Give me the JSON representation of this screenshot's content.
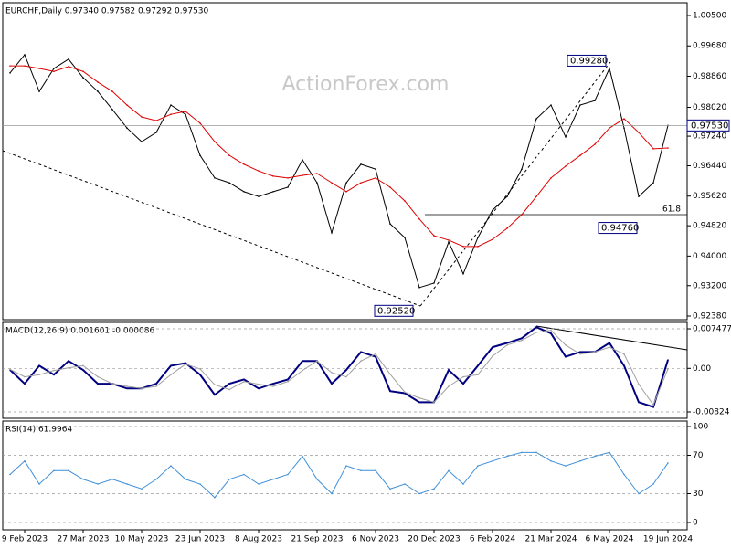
{
  "chart_data": [
    {
      "type": "line",
      "title": "EURCHF,Daily  0.97340 0.97582 0.97292 0.97530",
      "watermark": "ActionForex.com",
      "categories": [
        null,
        "9 Feb 2023",
        null,
        null,
        null,
        "27 Mar 2023",
        null,
        null,
        null,
        "10 May 2023",
        null,
        null,
        null,
        "23 Jun 2023",
        null,
        null,
        null,
        "8 Aug 2023",
        null,
        null,
        null,
        "21 Sep 2023",
        null,
        null,
        null,
        "6 Nov 2023",
        null,
        null,
        null,
        "20 Dec 2023",
        null,
        null,
        null,
        "6 Feb 2024",
        null,
        null,
        null,
        "21 Mar 2024",
        null,
        null,
        null,
        "6 May 2024",
        null,
        null,
        null,
        "19 Jun 2024"
      ],
      "series": [
        {
          "name": "EURCHF",
          "color": "#000000",
          "values": [
            0.9895,
            0.9944,
            0.9845,
            0.9907,
            0.9932,
            0.9882,
            0.9845,
            0.9796,
            0.9746,
            0.9709,
            0.9734,
            0.9808,
            0.9783,
            0.9672,
            0.9611,
            0.9598,
            0.9574,
            0.9561,
            0.9574,
            0.9586,
            0.966,
            0.9598,
            0.9463,
            0.9598,
            0.9648,
            0.9635,
            0.9487,
            0.945,
            0.9315,
            0.9327,
            0.9438,
            0.9352,
            0.945,
            0.9524,
            0.9561,
            0.9635,
            0.9771,
            0.9808,
            0.9722,
            0.9808,
            0.982,
            0.9907,
            0.9746,
            0.9561,
            0.9598,
            0.9753
          ]
        },
        {
          "name": "MA",
          "color": "#e00000",
          "values": [
            0.9914,
            0.9914,
            0.9907,
            0.9899,
            0.9912,
            0.9899,
            0.987,
            0.9845,
            0.9808,
            0.9776,
            0.9766,
            0.9783,
            0.9791,
            0.9759,
            0.9709,
            0.9672,
            0.9648,
            0.963,
            0.9616,
            0.9611,
            0.9618,
            0.9623,
            0.9598,
            0.9574,
            0.9598,
            0.9611,
            0.9586,
            0.9549,
            0.95,
            0.9455,
            0.9443,
            0.9426,
            0.9426,
            0.9445,
            0.9475,
            0.9512,
            0.9561,
            0.9611,
            0.9643,
            0.9672,
            0.9702,
            0.9746,
            0.9771,
            0.9734,
            0.969,
            0.9692
          ]
        }
      ],
      "ylim": [
        0.92281,
        1.00846
      ],
      "yticks": [
        {
          "value": 1.005,
          "label": "1.00500"
        },
        {
          "value": 0.9968,
          "label": "0.99680"
        },
        {
          "value": 0.9886,
          "label": "0.98860"
        },
        {
          "value": 0.9802,
          "label": "0.98020"
        },
        {
          "value": 0.9724,
          "label": "0.97240"
        },
        {
          "value": 0.9644,
          "label": "0.96440"
        },
        {
          "value": 0.9562,
          "label": "0.95620"
        },
        {
          "value": 0.9482,
          "label": "0.94820"
        },
        {
          "value": 0.94,
          "label": "0.94000"
        },
        {
          "value": 0.932,
          "label": "0.93200"
        },
        {
          "value": 0.9238,
          "label": "0.92380"
        }
      ],
      "grid": false,
      "annotations": [
        {
          "value": 0.9928,
          "label": "0.99280"
        },
        {
          "value": 0.9476,
          "label": "0.94760"
        },
        {
          "value": 0.9252,
          "label": "0.92520"
        },
        {
          "value": 0.9753,
          "label": "0.97530"
        }
      ],
      "fib_label": "61.8"
    },
    {
      "type": "line",
      "title": "MACD(12,26,9) 0.001601 -0.000086",
      "series": [
        {
          "name": "MACD",
          "color": "#000080",
          "values": [
            -0.0003,
            -0.0029,
            0.0005,
            -0.0012,
            0.0014,
            -0.0003,
            -0.0029,
            -0.0029,
            -0.0038,
            -0.0038,
            -0.0029,
            0.0005,
            0.001,
            -0.0012,
            -0.005,
            -0.0029,
            -0.0021,
            -0.0038,
            -0.0029,
            -0.0021,
            0.0014,
            0.0014,
            -0.0029,
            -0.0003,
            0.0031,
            0.0022,
            -0.0043,
            -0.0047,
            -0.0064,
            -0.0064,
            -0.0003,
            -0.0029,
            0.0005,
            0.004,
            0.0048,
            0.0057,
            0.0078,
            0.0066,
            0.0022,
            0.0031,
            0.0031,
            0.0048,
            0.0005,
            -0.0064,
            -0.0073,
            0.0016
          ]
        },
        {
          "name": "Signal",
          "color": "#a0a0a0",
          "values": [
            -0.0002,
            -0.0016,
            -0.0012,
            -0.0004,
            0.0001,
            0.0005,
            -0.0016,
            -0.0029,
            -0.0034,
            -0.0038,
            -0.0034,
            -0.0012,
            0.0008,
            -0.0001,
            -0.0031,
            -0.004,
            -0.0025,
            -0.003,
            -0.0034,
            -0.0025,
            -0.0004,
            0.0014,
            -0.0008,
            -0.0016,
            0.0014,
            0.0027,
            -0.0011,
            -0.0045,
            -0.0056,
            -0.0064,
            -0.0034,
            -0.0016,
            -0.0012,
            0.0023,
            0.0044,
            0.0053,
            0.0068,
            0.0072,
            0.0044,
            0.0027,
            0.0031,
            0.004,
            0.0027,
            -0.003,
            -0.0069,
            -0.0001
          ]
        }
      ],
      "ylim": [
        -0.00945,
        0.00869
      ],
      "yticks": [
        0.007477,
        {
          "value": 0,
          "label": "0.00"
        },
        -0.00824
      ],
      "grid": true
    },
    {
      "type": "line",
      "title": "RSI(14) 61.9964",
      "series": [
        {
          "name": "RSI",
          "color": "#3f8fd8",
          "values": [
            50,
            64,
            40,
            54,
            54,
            45,
            40,
            45,
            40,
            35,
            45,
            59,
            45,
            40,
            26,
            45,
            50,
            40,
            45,
            50,
            69,
            45,
            30,
            59,
            54,
            54,
            35,
            40,
            30,
            35,
            54,
            40,
            59,
            64,
            69,
            73,
            73,
            64,
            59,
            64,
            69,
            73,
            50,
            30,
            40,
            62
          ]
        }
      ],
      "ylim": [
        -7.6,
        105.7
      ],
      "yticks": [
        100,
        70,
        30,
        0
      ],
      "grid": true
    }
  ]
}
